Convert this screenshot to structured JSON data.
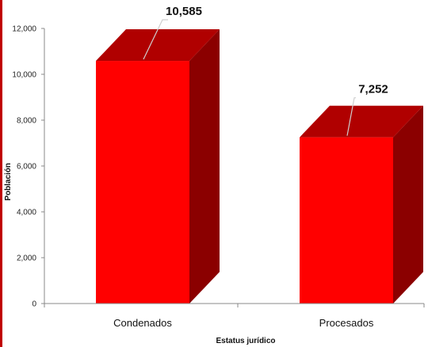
{
  "chart_data": {
    "type": "bar",
    "categories": [
      "Condenados",
      "Procesados"
    ],
    "values": [
      10585,
      7252
    ],
    "data_labels": [
      "10,585",
      "7,252"
    ],
    "xlabel": "Estatus jurídico",
    "ylabel": "Población",
    "ylim": [
      0,
      12000
    ],
    "yticks": [
      0,
      2000,
      4000,
      6000,
      8000,
      10000,
      12000
    ],
    "ytick_labels": [
      "0",
      "2,000",
      "4,000",
      "6,000",
      "8,000",
      "10,000",
      "12,000"
    ],
    "grid": false,
    "legend": "none",
    "style": "3d-column"
  },
  "colors": {
    "bar_front": "#ff0000",
    "bar_side": "#8b0000",
    "bar_top": "#b00000",
    "accent": "#c00000",
    "axis": "#888888"
  }
}
